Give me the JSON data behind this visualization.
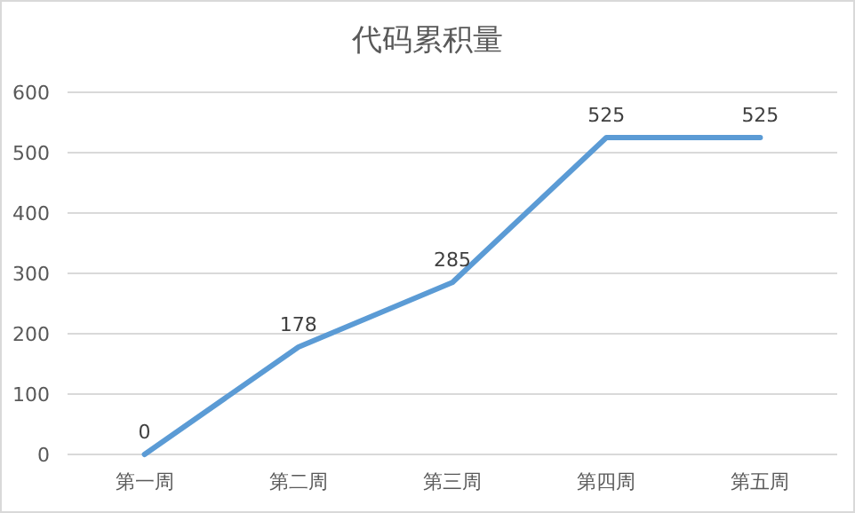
{
  "chart_data": {
    "type": "line",
    "title": "代码累积量",
    "categories": [
      "第一周",
      "第二周",
      "第三周",
      "第四周",
      "第五周"
    ],
    "series": [
      {
        "color": "#5b9bd5",
        "values": [
          0,
          178,
          285,
          525,
          525
        ]
      }
    ],
    "ylim": [
      0,
      600
    ],
    "yticks": [
      0,
      100,
      200,
      300,
      400,
      500,
      600
    ],
    "grid": "y",
    "data_labels": true,
    "marker": "none",
    "line_style": "solid"
  }
}
